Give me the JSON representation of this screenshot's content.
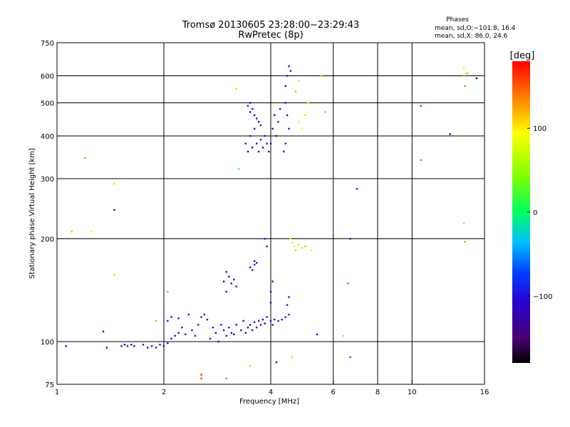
{
  "chart_data": {
    "type": "scatter",
    "title": "Tromsø 20130605 23:28:00−23:29:43",
    "subtitle": "RwPretec (8p)",
    "xlabel": "Frequency [MHz]",
    "ylabel": "Stationary phase Virtual Height [km]",
    "x_scale": "log",
    "y_scale": "log",
    "xlim": [
      1,
      16
    ],
    "ylim": [
      75,
      750
    ],
    "x_ticks": [
      1,
      2,
      4,
      6,
      8,
      10,
      16
    ],
    "x_tick_labels": [
      "1",
      "2",
      "4",
      "6",
      "8",
      "10",
      "16"
    ],
    "x_gridlines": [
      2,
      4,
      6,
      8,
      10
    ],
    "y_ticks": [
      75,
      100,
      200,
      300,
      400,
      500,
      600,
      750
    ],
    "y_tick_labels": [
      "75",
      "100",
      "200",
      "300",
      "400",
      "500",
      "600",
      "750"
    ],
    "y_gridlines": [
      100,
      200,
      300,
      400,
      500,
      600
    ],
    "grid": true,
    "color_by": "phase",
    "colorbar": {
      "label": "[deg]",
      "ticks": [
        100,
        0,
        -100
      ],
      "tick_labels": [
        "100",
        "0",
        "−100"
      ],
      "range": [
        -180,
        180
      ]
    },
    "stats": {
      "heading": "Phases",
      "line_o": "mean, sd,O:−101.8, 16.4",
      "line_x": "mean, sd,X:  86.0, 24.6"
    },
    "points": [
      {
        "x": 1.06,
        "y": 97,
        "phase": -100
      },
      {
        "x": 1.35,
        "y": 107,
        "phase": -100
      },
      {
        "x": 1.38,
        "y": 96,
        "phase": -100
      },
      {
        "x": 1.52,
        "y": 97,
        "phase": -110
      },
      {
        "x": 1.55,
        "y": 98,
        "phase": -105
      },
      {
        "x": 1.58,
        "y": 97,
        "phase": -100
      },
      {
        "x": 1.62,
        "y": 98,
        "phase": -100
      },
      {
        "x": 1.65,
        "y": 97,
        "phase": -95
      },
      {
        "x": 1.75,
        "y": 98,
        "phase": -100
      },
      {
        "x": 1.8,
        "y": 96,
        "phase": -100
      },
      {
        "x": 1.85,
        "y": 97,
        "phase": -100
      },
      {
        "x": 1.9,
        "y": 96,
        "phase": -95
      },
      {
        "x": 1.95,
        "y": 98,
        "phase": -100
      },
      {
        "x": 2.0,
        "y": 97,
        "phase": -100
      },
      {
        "x": 2.05,
        "y": 99,
        "phase": -100
      },
      {
        "x": 2.1,
        "y": 102,
        "phase": -100
      },
      {
        "x": 2.15,
        "y": 104,
        "phase": -95
      },
      {
        "x": 2.2,
        "y": 106,
        "phase": -100
      },
      {
        "x": 2.05,
        "y": 115,
        "phase": -100
      },
      {
        "x": 2.1,
        "y": 118,
        "phase": -95
      },
      {
        "x": 2.2,
        "y": 117,
        "phase": -100
      },
      {
        "x": 2.25,
        "y": 110,
        "phase": -100
      },
      {
        "x": 2.3,
        "y": 105,
        "phase": -100
      },
      {
        "x": 2.35,
        "y": 120,
        "phase": -100
      },
      {
        "x": 2.4,
        "y": 108,
        "phase": -100
      },
      {
        "x": 2.45,
        "y": 104,
        "phase": -100
      },
      {
        "x": 2.5,
        "y": 112,
        "phase": -100
      },
      {
        "x": 2.55,
        "y": 118,
        "phase": -95
      },
      {
        "x": 2.6,
        "y": 120,
        "phase": -100
      },
      {
        "x": 2.65,
        "y": 116,
        "phase": -100
      },
      {
        "x": 2.7,
        "y": 102,
        "phase": -100
      },
      {
        "x": 2.75,
        "y": 110,
        "phase": -100
      },
      {
        "x": 2.8,
        "y": 106,
        "phase": -95
      },
      {
        "x": 2.85,
        "y": 100,
        "phase": -100
      },
      {
        "x": 2.9,
        "y": 112,
        "phase": -100
      },
      {
        "x": 2.95,
        "y": 108,
        "phase": -100
      },
      {
        "x": 3.0,
        "y": 104,
        "phase": -100
      },
      {
        "x": 3.05,
        "y": 110,
        "phase": -100
      },
      {
        "x": 3.1,
        "y": 106,
        "phase": -100
      },
      {
        "x": 3.15,
        "y": 105,
        "phase": -100
      },
      {
        "x": 3.2,
        "y": 112,
        "phase": -110
      },
      {
        "x": 3.3,
        "y": 108,
        "phase": -105
      },
      {
        "x": 3.35,
        "y": 115,
        "phase": -100
      },
      {
        "x": 3.4,
        "y": 106,
        "phase": -100
      },
      {
        "x": 3.45,
        "y": 110,
        "phase": -100
      },
      {
        "x": 3.5,
        "y": 112,
        "phase": -100
      },
      {
        "x": 3.55,
        "y": 108,
        "phase": -100
      },
      {
        "x": 3.6,
        "y": 114,
        "phase": -100
      },
      {
        "x": 3.65,
        "y": 110,
        "phase": -100
      },
      {
        "x": 3.7,
        "y": 115,
        "phase": -100
      },
      {
        "x": 3.75,
        "y": 112,
        "phase": -100
      },
      {
        "x": 3.8,
        "y": 116,
        "phase": -100
      },
      {
        "x": 3.85,
        "y": 113,
        "phase": -100
      },
      {
        "x": 3.9,
        "y": 118,
        "phase": -100
      },
      {
        "x": 4.0,
        "y": 115,
        "phase": -100
      },
      {
        "x": 4.05,
        "y": 112,
        "phase": -100
      },
      {
        "x": 4.1,
        "y": 116,
        "phase": -100
      },
      {
        "x": 4.2,
        "y": 115,
        "phase": -100
      },
      {
        "x": 4.3,
        "y": 116,
        "phase": -100
      },
      {
        "x": 4.4,
        "y": 118,
        "phase": -100
      },
      {
        "x": 4.5,
        "y": 120,
        "phase": -100
      },
      {
        "x": 4.45,
        "y": 128,
        "phase": -100
      },
      {
        "x": 4.5,
        "y": 135,
        "phase": -100
      },
      {
        "x": 4.0,
        "y": 130,
        "phase": -100
      },
      {
        "x": 4.0,
        "y": 140,
        "phase": -100
      },
      {
        "x": 4.05,
        "y": 150,
        "phase": -100
      },
      {
        "x": 3.5,
        "y": 165,
        "phase": -105
      },
      {
        "x": 3.55,
        "y": 162,
        "phase": -100
      },
      {
        "x": 3.6,
        "y": 168,
        "phase": -100
      },
      {
        "x": 3.6,
        "y": 172,
        "phase": -100
      },
      {
        "x": 3.65,
        "y": 170,
        "phase": -100
      },
      {
        "x": 2.95,
        "y": 150,
        "phase": -110
      },
      {
        "x": 3.0,
        "y": 160,
        "phase": -110
      },
      {
        "x": 3.05,
        "y": 155,
        "phase": -105
      },
      {
        "x": 3.1,
        "y": 148,
        "phase": -100
      },
      {
        "x": 3.15,
        "y": 152,
        "phase": -100
      },
      {
        "x": 3.2,
        "y": 145,
        "phase": -100
      },
      {
        "x": 3.0,
        "y": 140,
        "phase": -100
      },
      {
        "x": 3.85,
        "y": 200,
        "phase": -100
      },
      {
        "x": 3.9,
        "y": 190,
        "phase": -100
      },
      {
        "x": 4.6,
        "y": 195,
        "phase": 60
      },
      {
        "x": 4.65,
        "y": 190,
        "phase": 80
      },
      {
        "x": 4.7,
        "y": 185,
        "phase": 50
      },
      {
        "x": 4.8,
        "y": 192,
        "phase": 70
      },
      {
        "x": 4.9,
        "y": 188,
        "phase": 60
      },
      {
        "x": 5.0,
        "y": 190,
        "phase": 40
      },
      {
        "x": 4.55,
        "y": 200,
        "phase": 90
      },
      {
        "x": 5.2,
        "y": 185,
        "phase": 100
      },
      {
        "x": 3.4,
        "y": 380,
        "phase": -100
      },
      {
        "x": 3.45,
        "y": 360,
        "phase": -110
      },
      {
        "x": 3.5,
        "y": 400,
        "phase": -100
      },
      {
        "x": 3.55,
        "y": 370,
        "phase": -110
      },
      {
        "x": 3.6,
        "y": 420,
        "phase": -100
      },
      {
        "x": 3.65,
        "y": 380,
        "phase": -105
      },
      {
        "x": 3.7,
        "y": 360,
        "phase": -100
      },
      {
        "x": 3.75,
        "y": 390,
        "phase": -100
      },
      {
        "x": 3.8,
        "y": 370,
        "phase": -110
      },
      {
        "x": 3.85,
        "y": 400,
        "phase": -100
      },
      {
        "x": 3.9,
        "y": 380,
        "phase": -100
      },
      {
        "x": 3.95,
        "y": 360,
        "phase": -110
      },
      {
        "x": 3.5,
        "y": 470,
        "phase": -100
      },
      {
        "x": 3.55,
        "y": 480,
        "phase": -110
      },
      {
        "x": 3.6,
        "y": 460,
        "phase": -100
      },
      {
        "x": 3.65,
        "y": 450,
        "phase": -100
      },
      {
        "x": 3.7,
        "y": 440,
        "phase": -105
      },
      {
        "x": 3.75,
        "y": 430,
        "phase": -100
      },
      {
        "x": 3.45,
        "y": 490,
        "phase": -100
      },
      {
        "x": 3.5,
        "y": 500,
        "phase": -110
      },
      {
        "x": 4.0,
        "y": 380,
        "phase": -100
      },
      {
        "x": 4.05,
        "y": 420,
        "phase": -100
      },
      {
        "x": 4.1,
        "y": 460,
        "phase": -100
      },
      {
        "x": 4.15,
        "y": 400,
        "phase": -100
      },
      {
        "x": 4.2,
        "y": 440,
        "phase": -100
      },
      {
        "x": 4.25,
        "y": 480,
        "phase": -100
      },
      {
        "x": 4.4,
        "y": 560,
        "phase": -100
      },
      {
        "x": 4.45,
        "y": 600,
        "phase": -100
      },
      {
        "x": 4.5,
        "y": 640,
        "phase": -100
      },
      {
        "x": 4.55,
        "y": 620,
        "phase": -100
      },
      {
        "x": 4.4,
        "y": 500,
        "phase": -100
      },
      {
        "x": 4.45,
        "y": 460,
        "phase": -100
      },
      {
        "x": 4.5,
        "y": 420,
        "phase": -100
      },
      {
        "x": 4.4,
        "y": 380,
        "phase": -100
      },
      {
        "x": 4.35,
        "y": 360,
        "phase": -100
      },
      {
        "x": 4.8,
        "y": 440,
        "phase": 80
      },
      {
        "x": 4.9,
        "y": 420,
        "phase": 90
      },
      {
        "x": 5.0,
        "y": 460,
        "phase": 60
      },
      {
        "x": 5.1,
        "y": 500,
        "phase": 100
      },
      {
        "x": 4.7,
        "y": 540,
        "phase": 120
      },
      {
        "x": 4.8,
        "y": 580,
        "phase": 110
      },
      {
        "x": 3.2,
        "y": 550,
        "phase": 110
      },
      {
        "x": 3.25,
        "y": 320,
        "phase": 20
      },
      {
        "x": 1.2,
        "y": 345,
        "phase": 130
      },
      {
        "x": 1.45,
        "y": 290,
        "phase": 110
      },
      {
        "x": 1.45,
        "y": 243,
        "phase": -150
      },
      {
        "x": 1.1,
        "y": 210,
        "phase": 120
      },
      {
        "x": 1.25,
        "y": 210,
        "phase": 80
      },
      {
        "x": 1.45,
        "y": 157,
        "phase": 110
      },
      {
        "x": 1.9,
        "y": 115,
        "phase": 120
      },
      {
        "x": 2.05,
        "y": 140,
        "phase": 130
      },
      {
        "x": 2.55,
        "y": 80,
        "phase": 170
      },
      {
        "x": 2.55,
        "y": 78,
        "phase": 160
      },
      {
        "x": 3.5,
        "y": 85,
        "phase": 110
      },
      {
        "x": 3.0,
        "y": 78,
        "phase": 140
      },
      {
        "x": 4.15,
        "y": 87,
        "phase": -120
      },
      {
        "x": 4.6,
        "y": 90,
        "phase": 110
      },
      {
        "x": 5.55,
        "y": 600,
        "phase": 110
      },
      {
        "x": 5.7,
        "y": 470,
        "phase": 120
      },
      {
        "x": 5.4,
        "y": 105,
        "phase": -110
      },
      {
        "x": 6.4,
        "y": 104,
        "phase": 110
      },
      {
        "x": 6.6,
        "y": 148,
        "phase": -40
      },
      {
        "x": 6.7,
        "y": 90,
        "phase": -60
      },
      {
        "x": 6.7,
        "y": 200,
        "phase": -130
      },
      {
        "x": 7.0,
        "y": 280,
        "phase": -80
      },
      {
        "x": 10.6,
        "y": 490,
        "phase": 170
      },
      {
        "x": 10.6,
        "y": 340,
        "phase": 150
      },
      {
        "x": 12.8,
        "y": 405,
        "phase": -110
      },
      {
        "x": 14.0,
        "y": 630,
        "phase": 100
      },
      {
        "x": 14.3,
        "y": 610,
        "phase": 130
      },
      {
        "x": 14.0,
        "y": 600,
        "phase": 20
      },
      {
        "x": 14.1,
        "y": 560,
        "phase": 140
      },
      {
        "x": 14.0,
        "y": 222,
        "phase": 110
      },
      {
        "x": 14.1,
        "y": 196,
        "phase": 130
      },
      {
        "x": 15.2,
        "y": 590,
        "phase": -170
      }
    ]
  }
}
